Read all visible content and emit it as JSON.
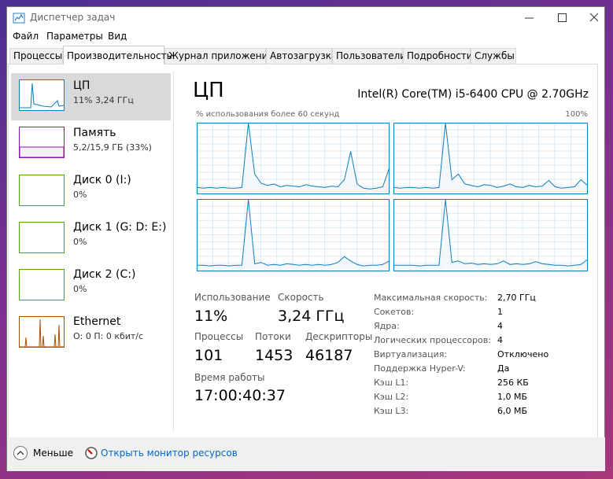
{
  "window": {
    "title": "Диспетчер задач"
  },
  "menu": [
    "Файл",
    "Параметры",
    "Вид"
  ],
  "tabs": [
    "Процессы",
    "Производительность",
    "Журнал приложений",
    "Автозагрузка",
    "Пользователи",
    "Подробности",
    "Службы"
  ],
  "sidebar": [
    {
      "name": "ЦП",
      "detail": "11% 3,24 ГГц"
    },
    {
      "name": "Память",
      "detail": "5,2/15,9 ГБ (33%)"
    },
    {
      "name": "Диск 0 (I:)",
      "detail": "0%"
    },
    {
      "name": "Диск 1 (G: D: E:)",
      "detail": "0%"
    },
    {
      "name": "Диск 2 (C:)",
      "detail": "0%"
    },
    {
      "name": "Ethernet",
      "detail": "О: 0 П: 0 кбит/с"
    }
  ],
  "header": {
    "title": "ЦП",
    "processor": "Intel(R) Core(TM) i5-6400 CPU @ 2.70GHz"
  },
  "graph": {
    "caption": "% использования более 60 секунд",
    "max": {
      "value": 100,
      "label": "100%"
    },
    "cores": [
      [
        9,
        8,
        9,
        8,
        9,
        8,
        8,
        9,
        100,
        28,
        15,
        12,
        14,
        10,
        12,
        11,
        10,
        13,
        11,
        10,
        9,
        11,
        10,
        20,
        60,
        14,
        8,
        7,
        8,
        10,
        36
      ],
      [
        9,
        8,
        9,
        9,
        8,
        9,
        8,
        9,
        100,
        20,
        28,
        14,
        12,
        10,
        13,
        12,
        9,
        11,
        14,
        10,
        9,
        12,
        10,
        11,
        19,
        10,
        8,
        9,
        10,
        20,
        12
      ],
      [
        8,
        8,
        7,
        8,
        8,
        7,
        8,
        8,
        100,
        10,
        12,
        8,
        9,
        8,
        10,
        9,
        8,
        9,
        8,
        9,
        8,
        9,
        12,
        20,
        14,
        9,
        7,
        8,
        8,
        9,
        14
      ],
      [
        8,
        8,
        8,
        8,
        7,
        8,
        8,
        8,
        100,
        12,
        14,
        10,
        11,
        9,
        10,
        9,
        10,
        14,
        9,
        10,
        9,
        10,
        13,
        10,
        9,
        8,
        8,
        7,
        8,
        9,
        16
      ]
    ]
  },
  "stats": {
    "usage": {
      "label": "Использование",
      "value": "11%"
    },
    "speed": {
      "label": "Скорость",
      "value": "3,24 ГГц"
    },
    "processes": {
      "label": "Процессы",
      "value": "101"
    },
    "threads": {
      "label": "Потоки",
      "value": "1453"
    },
    "handles": {
      "label": "Дескрипторы",
      "value": "46187"
    },
    "uptime": {
      "label": "Время работы",
      "value": "17:00:40:37"
    }
  },
  "specs": [
    [
      "Максимальная скорость:",
      "2,70 ГГц"
    ],
    [
      "Сокетов:",
      "1"
    ],
    [
      "Ядра:",
      "4"
    ],
    [
      "Логических процессоров:",
      "4"
    ],
    [
      "Виртуализация:",
      "Отключено"
    ],
    [
      "Поддержка Hyper-V:",
      "Да"
    ],
    [
      "Кэш L1:",
      "256 КБ"
    ],
    [
      "Кэш L2:",
      "1,0 МБ"
    ],
    [
      "Кэш L3:",
      "6,0 МБ"
    ]
  ],
  "footer": {
    "less": "Меньше",
    "link": "Открыть монитор ресурсов"
  }
}
